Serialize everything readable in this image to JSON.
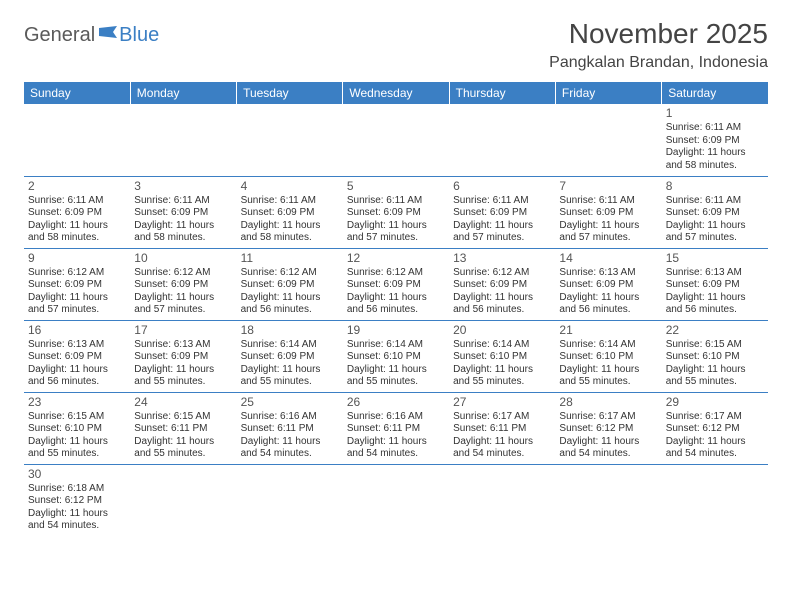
{
  "brand": {
    "part1": "General",
    "part2": "Blue"
  },
  "title": "November 2025",
  "location": "Pangkalan Brandan, Indonesia",
  "colors": {
    "header_bg": "#3b7fc4",
    "header_text": "#ffffff",
    "border": "#3b7fc4",
    "daynum": "#555555",
    "body_text": "#333333",
    "logo_gray": "#5a5a5a",
    "logo_blue": "#3b7fc4"
  },
  "day_headers": [
    "Sunday",
    "Monday",
    "Tuesday",
    "Wednesday",
    "Thursday",
    "Friday",
    "Saturday"
  ],
  "weeks": [
    [
      null,
      null,
      null,
      null,
      null,
      null,
      {
        "n": "1",
        "l1": "Sunrise: 6:11 AM",
        "l2": "Sunset: 6:09 PM",
        "l3": "Daylight: 11 hours",
        "l4": "and 58 minutes."
      }
    ],
    [
      {
        "n": "2",
        "l1": "Sunrise: 6:11 AM",
        "l2": "Sunset: 6:09 PM",
        "l3": "Daylight: 11 hours",
        "l4": "and 58 minutes."
      },
      {
        "n": "3",
        "l1": "Sunrise: 6:11 AM",
        "l2": "Sunset: 6:09 PM",
        "l3": "Daylight: 11 hours",
        "l4": "and 58 minutes."
      },
      {
        "n": "4",
        "l1": "Sunrise: 6:11 AM",
        "l2": "Sunset: 6:09 PM",
        "l3": "Daylight: 11 hours",
        "l4": "and 58 minutes."
      },
      {
        "n": "5",
        "l1": "Sunrise: 6:11 AM",
        "l2": "Sunset: 6:09 PM",
        "l3": "Daylight: 11 hours",
        "l4": "and 57 minutes."
      },
      {
        "n": "6",
        "l1": "Sunrise: 6:11 AM",
        "l2": "Sunset: 6:09 PM",
        "l3": "Daylight: 11 hours",
        "l4": "and 57 minutes."
      },
      {
        "n": "7",
        "l1": "Sunrise: 6:11 AM",
        "l2": "Sunset: 6:09 PM",
        "l3": "Daylight: 11 hours",
        "l4": "and 57 minutes."
      },
      {
        "n": "8",
        "l1": "Sunrise: 6:11 AM",
        "l2": "Sunset: 6:09 PM",
        "l3": "Daylight: 11 hours",
        "l4": "and 57 minutes."
      }
    ],
    [
      {
        "n": "9",
        "l1": "Sunrise: 6:12 AM",
        "l2": "Sunset: 6:09 PM",
        "l3": "Daylight: 11 hours",
        "l4": "and 57 minutes."
      },
      {
        "n": "10",
        "l1": "Sunrise: 6:12 AM",
        "l2": "Sunset: 6:09 PM",
        "l3": "Daylight: 11 hours",
        "l4": "and 57 minutes."
      },
      {
        "n": "11",
        "l1": "Sunrise: 6:12 AM",
        "l2": "Sunset: 6:09 PM",
        "l3": "Daylight: 11 hours",
        "l4": "and 56 minutes."
      },
      {
        "n": "12",
        "l1": "Sunrise: 6:12 AM",
        "l2": "Sunset: 6:09 PM",
        "l3": "Daylight: 11 hours",
        "l4": "and 56 minutes."
      },
      {
        "n": "13",
        "l1": "Sunrise: 6:12 AM",
        "l2": "Sunset: 6:09 PM",
        "l3": "Daylight: 11 hours",
        "l4": "and 56 minutes."
      },
      {
        "n": "14",
        "l1": "Sunrise: 6:13 AM",
        "l2": "Sunset: 6:09 PM",
        "l3": "Daylight: 11 hours",
        "l4": "and 56 minutes."
      },
      {
        "n": "15",
        "l1": "Sunrise: 6:13 AM",
        "l2": "Sunset: 6:09 PM",
        "l3": "Daylight: 11 hours",
        "l4": "and 56 minutes."
      }
    ],
    [
      {
        "n": "16",
        "l1": "Sunrise: 6:13 AM",
        "l2": "Sunset: 6:09 PM",
        "l3": "Daylight: 11 hours",
        "l4": "and 56 minutes."
      },
      {
        "n": "17",
        "l1": "Sunrise: 6:13 AM",
        "l2": "Sunset: 6:09 PM",
        "l3": "Daylight: 11 hours",
        "l4": "and 55 minutes."
      },
      {
        "n": "18",
        "l1": "Sunrise: 6:14 AM",
        "l2": "Sunset: 6:09 PM",
        "l3": "Daylight: 11 hours",
        "l4": "and 55 minutes."
      },
      {
        "n": "19",
        "l1": "Sunrise: 6:14 AM",
        "l2": "Sunset: 6:10 PM",
        "l3": "Daylight: 11 hours",
        "l4": "and 55 minutes."
      },
      {
        "n": "20",
        "l1": "Sunrise: 6:14 AM",
        "l2": "Sunset: 6:10 PM",
        "l3": "Daylight: 11 hours",
        "l4": "and 55 minutes."
      },
      {
        "n": "21",
        "l1": "Sunrise: 6:14 AM",
        "l2": "Sunset: 6:10 PM",
        "l3": "Daylight: 11 hours",
        "l4": "and 55 minutes."
      },
      {
        "n": "22",
        "l1": "Sunrise: 6:15 AM",
        "l2": "Sunset: 6:10 PM",
        "l3": "Daylight: 11 hours",
        "l4": "and 55 minutes."
      }
    ],
    [
      {
        "n": "23",
        "l1": "Sunrise: 6:15 AM",
        "l2": "Sunset: 6:10 PM",
        "l3": "Daylight: 11 hours",
        "l4": "and 55 minutes."
      },
      {
        "n": "24",
        "l1": "Sunrise: 6:15 AM",
        "l2": "Sunset: 6:11 PM",
        "l3": "Daylight: 11 hours",
        "l4": "and 55 minutes."
      },
      {
        "n": "25",
        "l1": "Sunrise: 6:16 AM",
        "l2": "Sunset: 6:11 PM",
        "l3": "Daylight: 11 hours",
        "l4": "and 54 minutes."
      },
      {
        "n": "26",
        "l1": "Sunrise: 6:16 AM",
        "l2": "Sunset: 6:11 PM",
        "l3": "Daylight: 11 hours",
        "l4": "and 54 minutes."
      },
      {
        "n": "27",
        "l1": "Sunrise: 6:17 AM",
        "l2": "Sunset: 6:11 PM",
        "l3": "Daylight: 11 hours",
        "l4": "and 54 minutes."
      },
      {
        "n": "28",
        "l1": "Sunrise: 6:17 AM",
        "l2": "Sunset: 6:12 PM",
        "l3": "Daylight: 11 hours",
        "l4": "and 54 minutes."
      },
      {
        "n": "29",
        "l1": "Sunrise: 6:17 AM",
        "l2": "Sunset: 6:12 PM",
        "l3": "Daylight: 11 hours",
        "l4": "and 54 minutes."
      }
    ],
    [
      {
        "n": "30",
        "l1": "Sunrise: 6:18 AM",
        "l2": "Sunset: 6:12 PM",
        "l3": "Daylight: 11 hours",
        "l4": "and 54 minutes."
      },
      null,
      null,
      null,
      null,
      null,
      null
    ]
  ]
}
